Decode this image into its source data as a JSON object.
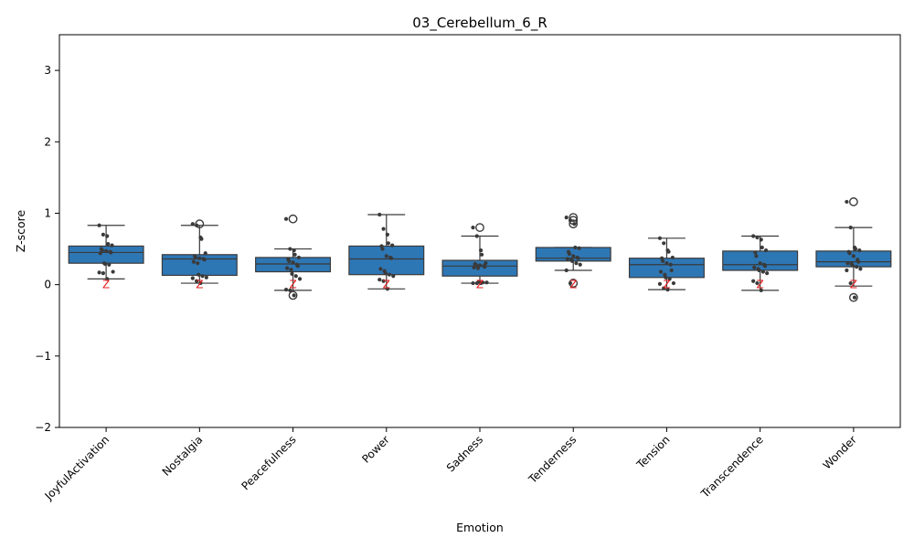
{
  "chart_data": {
    "type": "box",
    "title": "03_Cerebellum_6_R",
    "xlabel": "Emotion",
    "ylabel": "Z-score",
    "ylim": [
      -2,
      3.5
    ],
    "yticks": [
      -2,
      -1,
      0,
      1,
      2,
      3
    ],
    "ytick_labels": [
      "−2",
      "−1",
      "0",
      "1",
      "2",
      "3"
    ],
    "categories": [
      "JoyfulActivation",
      "Nostalgia",
      "Peacefulness",
      "Power",
      "Sadness",
      "Tenderness",
      "Tension",
      "Transcendence",
      "Wonder"
    ],
    "box_color": "#2e77b5",
    "marker_color": "#3a3a3a",
    "annotation_color": "#e41a1c",
    "annotation_text": "Z",
    "annotation_y": [
      0.0,
      0.0,
      0.0,
      0.0,
      0.0,
      0.0,
      0.0,
      0.0,
      0.0
    ],
    "boxes": [
      {
        "category": "JoyfulActivation",
        "q1": 0.3,
        "median": 0.45,
        "q3": 0.54,
        "whisker_low": 0.08,
        "whisker_high": 0.83,
        "outliers": []
      },
      {
        "category": "Nostalgia",
        "q1": 0.13,
        "median": 0.36,
        "q3": 0.42,
        "whisker_low": 0.02,
        "whisker_high": 0.83,
        "outliers": [
          0.85
        ]
      },
      {
        "category": "Peacefulness",
        "q1": 0.18,
        "median": 0.29,
        "q3": 0.38,
        "whisker_low": -0.08,
        "whisker_high": 0.5,
        "outliers": [
          0.92,
          -0.15
        ]
      },
      {
        "category": "Power",
        "q1": 0.14,
        "median": 0.36,
        "q3": 0.54,
        "whisker_low": -0.06,
        "whisker_high": 0.98,
        "outliers": []
      },
      {
        "category": "Sadness",
        "q1": 0.12,
        "median": 0.26,
        "q3": 0.34,
        "whisker_low": 0.02,
        "whisker_high": 0.68,
        "outliers": [
          0.8
        ]
      },
      {
        "category": "Tenderness",
        "q1": 0.33,
        "median": 0.37,
        "q3": 0.52,
        "whisker_low": 0.2,
        "whisker_high": 0.52,
        "outliers": [
          0.94,
          0.9,
          0.85,
          0.02
        ]
      },
      {
        "category": "Tension",
        "q1": 0.1,
        "median": 0.28,
        "q3": 0.37,
        "whisker_low": -0.07,
        "whisker_high": 0.65,
        "outliers": []
      },
      {
        "category": "Transcendence",
        "q1": 0.2,
        "median": 0.28,
        "q3": 0.47,
        "whisker_low": -0.08,
        "whisker_high": 0.68,
        "outliers": []
      },
      {
        "category": "Wonder",
        "q1": 0.25,
        "median": 0.32,
        "q3": 0.47,
        "whisker_low": -0.02,
        "whisker_high": 0.8,
        "outliers": [
          1.16,
          -0.18
        ]
      }
    ],
    "points": [
      [
        0.83,
        0.7,
        0.68,
        0.57,
        0.55,
        0.5,
        0.48,
        0.47,
        0.46,
        0.45,
        0.44,
        0.3,
        0.29,
        0.28,
        0.18,
        0.17,
        0.16,
        0.08
      ],
      [
        0.85,
        0.83,
        0.66,
        0.64,
        0.44,
        0.4,
        0.38,
        0.37,
        0.36,
        0.35,
        0.32,
        0.3,
        0.14,
        0.12,
        0.1,
        0.09,
        0.05,
        0.02
      ],
      [
        0.92,
        0.5,
        0.48,
        0.42,
        0.38,
        0.36,
        0.33,
        0.31,
        0.28,
        0.26,
        0.23,
        0.21,
        0.15,
        0.12,
        0.08,
        -0.07,
        -0.08,
        -0.15
      ],
      [
        0.98,
        0.78,
        0.7,
        0.58,
        0.55,
        0.54,
        0.5,
        0.4,
        0.38,
        0.37,
        0.22,
        0.19,
        0.16,
        0.14,
        0.12,
        0.07,
        0.05,
        -0.06
      ],
      [
        0.8,
        0.68,
        0.48,
        0.42,
        0.3,
        0.29,
        0.28,
        0.27,
        0.26,
        0.25,
        0.24,
        0.23,
        0.04,
        0.03,
        0.03,
        0.02,
        0.02,
        0.02
      ],
      [
        0.94,
        0.9,
        0.85,
        0.52,
        0.51,
        0.46,
        0.43,
        0.4,
        0.38,
        0.37,
        0.36,
        0.35,
        0.33,
        0.3,
        0.28,
        0.2,
        0.02
      ],
      [
        0.65,
        0.58,
        0.48,
        0.46,
        0.38,
        0.37,
        0.33,
        0.3,
        0.28,
        0.2,
        0.18,
        0.14,
        0.1,
        0.08,
        0.02,
        0.01,
        -0.05,
        -0.07
      ],
      [
        0.68,
        0.66,
        0.63,
        0.52,
        0.48,
        0.45,
        0.4,
        0.3,
        0.28,
        0.26,
        0.24,
        0.22,
        0.2,
        0.18,
        0.16,
        0.05,
        0.02,
        -0.08
      ],
      [
        1.16,
        0.8,
        0.52,
        0.5,
        0.48,
        0.46,
        0.44,
        0.4,
        0.35,
        0.32,
        0.3,
        0.29,
        0.27,
        0.25,
        0.22,
        0.2,
        0.02,
        -0.18
      ]
    ]
  }
}
